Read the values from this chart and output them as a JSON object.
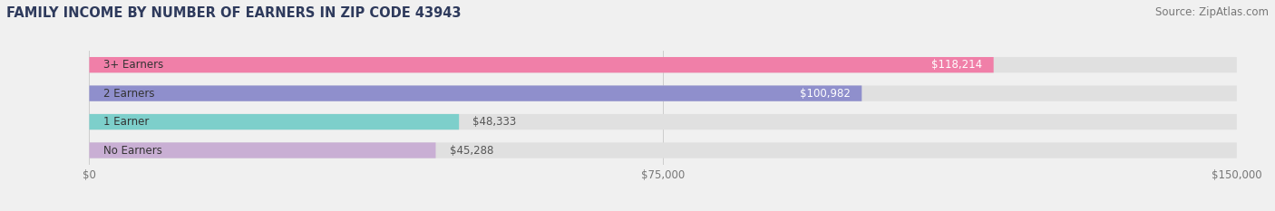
{
  "title": "FAMILY INCOME BY NUMBER OF EARNERS IN ZIP CODE 43943",
  "source": "Source: ZipAtlas.com",
  "categories": [
    "No Earners",
    "1 Earner",
    "2 Earners",
    "3+ Earners"
  ],
  "values": [
    45288,
    48333,
    100982,
    118214
  ],
  "bar_colors": [
    "#c9afd4",
    "#7dcfcb",
    "#8f8fcc",
    "#f07fa8"
  ],
  "bar_labels": [
    "$45,288",
    "$48,333",
    "$100,982",
    "$118,214"
  ],
  "label_colors": [
    "#555555",
    "#555555",
    "#ffffff",
    "#ffffff"
  ],
  "xlim": [
    0,
    150000
  ],
  "xticks": [
    0,
    75000,
    150000
  ],
  "xtick_labels": [
    "$0",
    "$75,000",
    "$150,000"
  ],
  "background_color": "#f0f0f0",
  "bar_bg_color": "#e0e0e0",
  "title_color": "#2e3a5c",
  "source_color": "#777777",
  "title_fontsize": 10.5,
  "source_fontsize": 8.5,
  "label_fontsize": 8.5,
  "category_fontsize": 8.5,
  "tick_fontsize": 8.5
}
